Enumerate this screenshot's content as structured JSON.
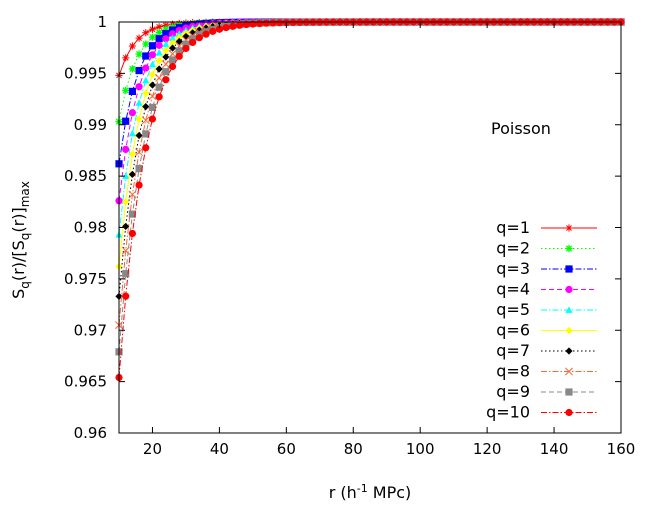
{
  "chart_data": {
    "type": "line",
    "title": "",
    "annotation": "Poisson",
    "xlabel": {
      "base": "r (h",
      "sup": "-1",
      "rest": " MPc)"
    },
    "ylabel": {
      "s1": "S",
      "q1": "q",
      "m1": "(r)/[S",
      "q2": "q",
      "m2": "(r)]",
      "sub": "max"
    },
    "xlim": [
      10,
      160
    ],
    "ylim": [
      0.96,
      1.0
    ],
    "xticks": [
      20,
      40,
      60,
      80,
      100,
      120,
      140,
      160
    ],
    "xtick_labels": [
      "20",
      "40",
      "60",
      "80",
      "100",
      "120",
      "140",
      "160"
    ],
    "yticks": [
      0.96,
      0.965,
      0.97,
      0.975,
      0.98,
      0.985,
      0.99,
      0.995,
      1.0
    ],
    "ytick_labels": [
      "0.96",
      "0.965",
      "0.97",
      "0.975",
      "0.98",
      "0.985",
      "0.99",
      "0.995",
      "1"
    ],
    "legend_position": "bottom-right",
    "x_start": 10,
    "x_step": 2,
    "x_end": 160,
    "series": [
      {
        "name": "q=1",
        "color": "#ff0000",
        "marker": "plus-cross",
        "dash": "solid",
        "y0": 0.9948,
        "tau": 5.0
      },
      {
        "name": "q=2",
        "color": "#00ff00",
        "marker": "asterisk",
        "dash": "dotted",
        "y0": 0.9903,
        "tau": 5.3
      },
      {
        "name": "q=3",
        "color": "#0000ff",
        "marker": "square",
        "dash": "dashdot",
        "y0": 0.9862,
        "tau": 5.6
      },
      {
        "name": "q=4",
        "color": "#ff00ff",
        "marker": "circle",
        "dash": "dashed",
        "y0": 0.9826,
        "tau": 5.9
      },
      {
        "name": "q=5",
        "color": "#00ffff",
        "marker": "triangle",
        "dash": "dashdot",
        "y0": 0.9793,
        "tau": 6.2
      },
      {
        "name": "q=6",
        "color": "#ffff00",
        "marker": "diamond",
        "dash": "solid",
        "y0": 0.9762,
        "tau": 6.5
      },
      {
        "name": "q=7",
        "color": "#000000",
        "marker": "diamond",
        "dash": "dotted",
        "y0": 0.9733,
        "tau": 6.8
      },
      {
        "name": "q=8",
        "color": "#ff6633",
        "marker": "cross",
        "dash": "dashdot",
        "y0": 0.9705,
        "tau": 7.1
      },
      {
        "name": "q=9",
        "color": "#888888",
        "marker": "square",
        "dash": "dashed",
        "y0": 0.9679,
        "tau": 7.4
      },
      {
        "name": "q=10",
        "color": "#ff0000",
        "marker": "circle",
        "dash": "dashdot",
        "y0": 0.9654,
        "tau": 7.7
      }
    ]
  }
}
